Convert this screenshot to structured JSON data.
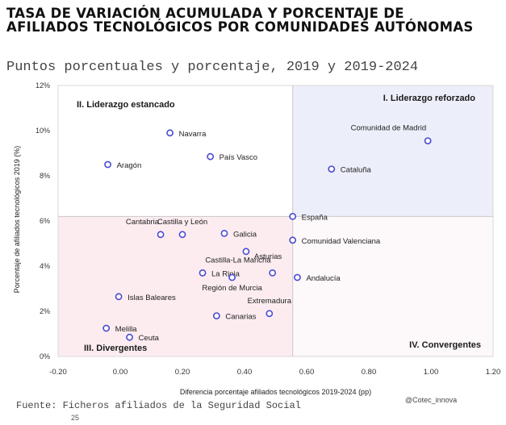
{
  "page": {
    "title": "TASA DE VARIACIÓN ACUMULADA Y PORCENTAJE DE AFILIADOS TECNOLÓGICOS POR COMUNIDADES AUTÓNOMAS",
    "subtitle": "Puntos porcentuales y porcentaje, 2019 y 2019-2024",
    "source": "Fuente: Ficheros afiliados de la Seguridad Social",
    "handle": "@Cotec_innova",
    "page_number": "25"
  },
  "chart_data": {
    "type": "scatter",
    "xlabel": "Diferencia porcentaje afiliados tecnológicos 2019-2024 (pp)",
    "ylabel": "Porcentaje de afiliados tecnológicos 2019 (%)",
    "xlim": [
      -0.2,
      1.2
    ],
    "ylim": [
      0,
      12
    ],
    "x_ticks": [
      -0.2,
      0.0,
      0.2,
      0.4,
      0.6,
      0.8,
      1.0,
      1.2
    ],
    "x_tick_labels": [
      "-0.20",
      "0.00",
      "0.20",
      "0.40",
      "0.60",
      "0.80",
      "1.00",
      "1.20"
    ],
    "y_ticks": [
      0,
      2,
      4,
      6,
      8,
      10,
      12
    ],
    "y_tick_labels": [
      "0%",
      "2%",
      "4%",
      "6%",
      "8%",
      "10%",
      "12%"
    ],
    "quadrant_split": {
      "x": 0.555,
      "y": 6.2
    },
    "quadrants": [
      {
        "label": "II. Liderazgo estancado",
        "position": "top-left",
        "color": "#ffffff"
      },
      {
        "label": "I. Liderazgo reforzado",
        "position": "top-right",
        "color": "#eceef9"
      },
      {
        "label": "III. Divergentes",
        "position": "bottom-left",
        "color": "#fcecf0"
      },
      {
        "label": "IV. Convergentes",
        "position": "bottom-right",
        "color": "#fdf8fa"
      }
    ],
    "marker_color": "#4a4ad0",
    "points": [
      {
        "name": "Comunidad de Madrid",
        "x": 0.99,
        "y": 9.55,
        "label_pos": "above-left"
      },
      {
        "name": "Cataluña",
        "x": 0.68,
        "y": 8.3,
        "label_pos": "right"
      },
      {
        "name": "Navarra",
        "x": 0.16,
        "y": 9.9,
        "label_pos": "right"
      },
      {
        "name": "País Vasco",
        "x": 0.29,
        "y": 8.85,
        "label_pos": "right"
      },
      {
        "name": "Aragón",
        "x": -0.04,
        "y": 8.5,
        "label_pos": "right"
      },
      {
        "name": "España",
        "x": 0.555,
        "y": 6.2,
        "label_pos": "right"
      },
      {
        "name": "Comunidad Valenciana",
        "x": 0.555,
        "y": 5.15,
        "label_pos": "right"
      },
      {
        "name": "Cantabria",
        "x": 0.13,
        "y": 5.4,
        "label_pos": "above-left"
      },
      {
        "name": "Castilla y León",
        "x": 0.2,
        "y": 5.4,
        "label_pos": "above"
      },
      {
        "name": "Galicia",
        "x": 0.335,
        "y": 5.45,
        "label_pos": "right"
      },
      {
        "name": "Asturias",
        "x": 0.405,
        "y": 4.65,
        "label_pos": "below-right"
      },
      {
        "name": "Castilla-La Mancha",
        "x": 0.49,
        "y": 3.7,
        "label_pos": "above-left"
      },
      {
        "name": "Andalucía",
        "x": 0.57,
        "y": 3.5,
        "label_pos": "right"
      },
      {
        "name": "La Rioja",
        "x": 0.265,
        "y": 3.7,
        "label_pos": "right"
      },
      {
        "name": "Región de Murcia",
        "x": 0.36,
        "y": 3.5,
        "label_pos": "below"
      },
      {
        "name": "Extremadura",
        "x": 0.48,
        "y": 1.9,
        "label_pos": "above"
      },
      {
        "name": "Canarias",
        "x": 0.31,
        "y": 1.8,
        "label_pos": "right"
      },
      {
        "name": "Islas Baleares",
        "x": -0.005,
        "y": 2.65,
        "label_pos": "right"
      },
      {
        "name": "Melilla",
        "x": -0.045,
        "y": 1.25,
        "label_pos": "right"
      },
      {
        "name": "Ceuta",
        "x": 0.03,
        "y": 0.85,
        "label_pos": "right"
      }
    ]
  }
}
